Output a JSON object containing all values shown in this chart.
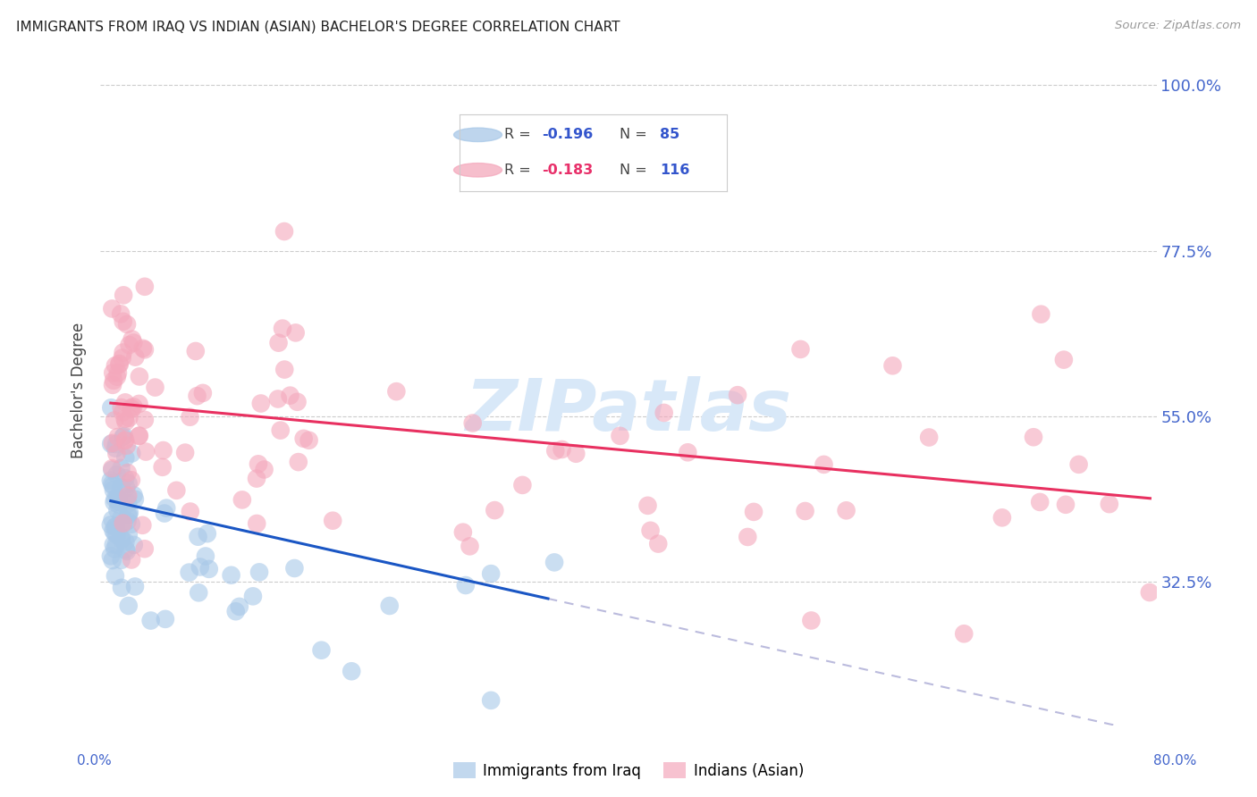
{
  "title": "IMMIGRANTS FROM IRAQ VS INDIAN (ASIAN) BACHELOR'S DEGREE CORRELATION CHART",
  "source": "Source: ZipAtlas.com",
  "ylabel": "Bachelor's Degree",
  "ytick_labels": [
    "100.0%",
    "77.5%",
    "55.0%",
    "32.5%"
  ],
  "ytick_values": [
    1.0,
    0.775,
    0.55,
    0.325
  ],
  "ymin": 0.13,
  "ymax": 1.04,
  "xmin": -0.008,
  "xmax": 0.825,
  "iraq_color": "#a8c8e8",
  "india_color": "#f4a8bc",
  "iraq_line_color": "#1a56c4",
  "india_line_color": "#e83060",
  "dashed_color": "#bbbbdd",
  "watermark": "ZIPatlas",
  "watermark_color": "#d8e8f8",
  "iraq_r": "-0.196",
  "iraq_n": "85",
  "india_r": "-0.183",
  "india_n": "116",
  "label_iraq": "Immigrants from Iraq",
  "label_india": "Indians (Asian)"
}
